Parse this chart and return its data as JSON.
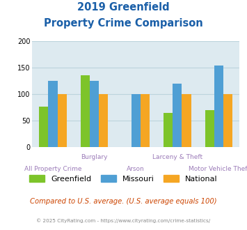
{
  "title_line1": "2019 Greenfield",
  "title_line2": "Property Crime Comparison",
  "categories": [
    "All Property Crime",
    "Burglary",
    "Arson",
    "Larceny & Theft",
    "Motor Vehicle Theft"
  ],
  "x_labels_top": [
    "",
    "Burglary",
    "",
    "Larceny & Theft",
    ""
  ],
  "x_labels_bottom": [
    "All Property Crime",
    "",
    "Arson",
    "",
    "Motor Vehicle Theft"
  ],
  "series": {
    "Greenfield": [
      77,
      136,
      null,
      65,
      70
    ],
    "Missouri": [
      125,
      125,
      100,
      120,
      155
    ],
    "National": [
      100,
      100,
      100,
      100,
      100
    ]
  },
  "colors": {
    "Greenfield": "#7dc42a",
    "Missouri": "#4f9fd4",
    "National": "#f5a623"
  },
  "ylim": [
    0,
    200
  ],
  "yticks": [
    0,
    50,
    100,
    150,
    200
  ],
  "background_color": "#ddeaf0",
  "title_color": "#1a5fa8",
  "xlabel_color": "#9b7bb8",
  "footer_text": "Compared to U.S. average. (U.S. average equals 100)",
  "footer_color": "#cc4400",
  "copyright_text": "© 2025 CityRating.com - https://www.cityrating.com/crime-statistics/",
  "copyright_color": "#888888",
  "grid_color": "#bcd4dd"
}
